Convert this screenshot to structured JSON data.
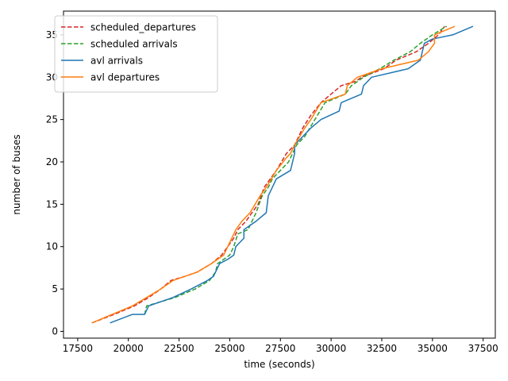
{
  "chart_data": {
    "type": "line",
    "title": "",
    "xlabel": "time (seconds)",
    "ylabel": "number of buses",
    "xlim": [
      16800,
      38100
    ],
    "ylim": [
      -0.8,
      37.8
    ],
    "xticks": [
      17500,
      20000,
      22500,
      25000,
      27500,
      30000,
      32500,
      35000,
      37500
    ],
    "yticks": [
      0,
      5,
      10,
      15,
      20,
      25,
      30,
      35
    ],
    "grid": false,
    "legend_position": "top-left",
    "series": [
      {
        "name": "scheduled_departures",
        "color": "#d62728",
        "style": "dashed",
        "points": [
          [
            18200,
            1
          ],
          [
            19300,
            2
          ],
          [
            20300,
            3
          ],
          [
            21000,
            4
          ],
          [
            21600,
            5
          ],
          [
            22100,
            6
          ],
          [
            22800,
            6.5
          ],
          [
            23400,
            7
          ],
          [
            24100,
            8
          ],
          [
            24600,
            9
          ],
          [
            25200,
            11
          ],
          [
            25400,
            12
          ],
          [
            25800,
            13
          ],
          [
            26100,
            14
          ],
          [
            26400,
            15
          ],
          [
            26700,
            17
          ],
          [
            27300,
            19
          ],
          [
            27800,
            21
          ],
          [
            28200,
            22
          ],
          [
            28600,
            24
          ],
          [
            29000,
            25.5
          ],
          [
            29500,
            27
          ],
          [
            30000,
            28
          ],
          [
            30500,
            29
          ],
          [
            31200,
            29.5
          ],
          [
            31500,
            30
          ],
          [
            32600,
            31
          ],
          [
            33200,
            32
          ],
          [
            34200,
            33
          ],
          [
            34800,
            34
          ],
          [
            35300,
            35
          ],
          [
            35600,
            36
          ]
        ]
      },
      {
        "name": "scheduled arrivals",
        "color": "#2ca02c",
        "style": "dashed",
        "points": [
          [
            20800,
            2
          ],
          [
            20900,
            3
          ],
          [
            21600,
            3.5
          ],
          [
            22300,
            4
          ],
          [
            23300,
            5
          ],
          [
            24000,
            6
          ],
          [
            24300,
            7
          ],
          [
            24400,
            8
          ],
          [
            25000,
            9
          ],
          [
            25200,
            10
          ],
          [
            25400,
            11.5
          ],
          [
            25900,
            12
          ],
          [
            26300,
            14
          ],
          [
            26600,
            16
          ],
          [
            26900,
            17
          ],
          [
            27100,
            18
          ],
          [
            27500,
            19
          ],
          [
            27900,
            20
          ],
          [
            28100,
            21
          ],
          [
            28300,
            22
          ],
          [
            28700,
            23
          ],
          [
            29200,
            25
          ],
          [
            29700,
            27
          ],
          [
            30700,
            28
          ],
          [
            31000,
            29
          ],
          [
            31600,
            30
          ],
          [
            32400,
            31
          ],
          [
            33100,
            32
          ],
          [
            33900,
            33
          ],
          [
            34400,
            34
          ],
          [
            35000,
            35
          ],
          [
            35700,
            36
          ]
        ]
      },
      {
        "name": "avl arrivals",
        "color": "#1f77b4",
        "style": "solid",
        "points": [
          [
            19100,
            1
          ],
          [
            20200,
            2
          ],
          [
            20800,
            2
          ],
          [
            21000,
            3
          ],
          [
            22200,
            4
          ],
          [
            23100,
            5
          ],
          [
            23900,
            6
          ],
          [
            24200,
            6.5
          ],
          [
            24500,
            8
          ],
          [
            24900,
            8.5
          ],
          [
            25200,
            9
          ],
          [
            25300,
            10
          ],
          [
            25500,
            10.5
          ],
          [
            25700,
            11
          ],
          [
            25700,
            12
          ],
          [
            26300,
            13
          ],
          [
            26800,
            14
          ],
          [
            26900,
            16
          ],
          [
            27300,
            18
          ],
          [
            28000,
            19
          ],
          [
            28100,
            20
          ],
          [
            28200,
            21
          ],
          [
            28200,
            22
          ],
          [
            28600,
            23
          ],
          [
            29000,
            24
          ],
          [
            29500,
            25
          ],
          [
            30400,
            26
          ],
          [
            30500,
            27
          ],
          [
            31500,
            28
          ],
          [
            31600,
            29
          ],
          [
            32000,
            30
          ],
          [
            33800,
            31
          ],
          [
            34400,
            32
          ],
          [
            34600,
            34
          ],
          [
            35000,
            34.5
          ],
          [
            36000,
            35
          ],
          [
            37000,
            36
          ]
        ]
      },
      {
        "name": "avl departures",
        "color": "#ff7f0e",
        "style": "solid",
        "points": [
          [
            18200,
            1
          ],
          [
            19200,
            2
          ],
          [
            20200,
            3
          ],
          [
            20900,
            4
          ],
          [
            21600,
            5
          ],
          [
            22200,
            6
          ],
          [
            23400,
            7
          ],
          [
            24100,
            8
          ],
          [
            24700,
            9
          ],
          [
            25100,
            11
          ],
          [
            25300,
            12
          ],
          [
            25600,
            13
          ],
          [
            26000,
            14
          ],
          [
            26500,
            16
          ],
          [
            26800,
            17
          ],
          [
            27300,
            19
          ],
          [
            27800,
            20.5
          ],
          [
            28000,
            21
          ],
          [
            28200,
            22
          ],
          [
            28700,
            24
          ],
          [
            29000,
            25
          ],
          [
            29500,
            27
          ],
          [
            30700,
            28
          ],
          [
            30800,
            29
          ],
          [
            31300,
            30
          ],
          [
            32500,
            31
          ],
          [
            34300,
            32
          ],
          [
            34800,
            33
          ],
          [
            35100,
            34
          ],
          [
            35100,
            35
          ],
          [
            36100,
            36
          ]
        ]
      }
    ]
  }
}
